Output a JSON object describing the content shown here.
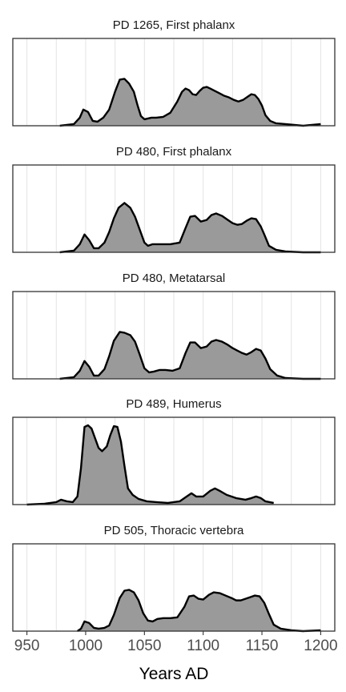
{
  "chart_data": {
    "type": "area",
    "x_ticks": [
      950,
      1000,
      1050,
      1100,
      1150,
      1200
    ],
    "xlabel": "Years AD",
    "xlim": [
      938,
      1212
    ],
    "colors": {
      "fill": "#9a9a9a",
      "line": "#000000",
      "grid": "#e3e3e3",
      "frame": "#333333"
    },
    "grid": true,
    "panels": [
      {
        "title": "PD 1265, First phalanx",
        "x": [
          978,
          990,
          995,
          998,
          1002,
          1006,
          1010,
          1015,
          1020,
          1025,
          1029,
          1033,
          1037,
          1041,
          1044,
          1047,
          1050,
          1053,
          1056,
          1060,
          1066,
          1072,
          1078,
          1082,
          1085,
          1088,
          1091,
          1094,
          1097,
          1100,
          1103,
          1106,
          1110,
          1114,
          1118,
          1122,
          1126,
          1130,
          1134,
          1138,
          1141,
          1144,
          1147,
          1150,
          1153,
          1157,
          1162,
          1170,
          1185,
          1200
        ],
        "y": [
          0.0,
          0.02,
          0.1,
          0.2,
          0.17,
          0.06,
          0.05,
          0.1,
          0.2,
          0.42,
          0.57,
          0.58,
          0.52,
          0.42,
          0.26,
          0.12,
          0.08,
          0.09,
          0.1,
          0.1,
          0.11,
          0.16,
          0.3,
          0.42,
          0.46,
          0.44,
          0.39,
          0.38,
          0.43,
          0.47,
          0.48,
          0.46,
          0.43,
          0.4,
          0.37,
          0.35,
          0.32,
          0.3,
          0.32,
          0.36,
          0.39,
          0.38,
          0.33,
          0.25,
          0.13,
          0.06,
          0.03,
          0.02,
          0.0,
          0.02
        ]
      },
      {
        "title": "PD 480, First phalanx",
        "x": [
          978,
          990,
          995,
          999,
          1003,
          1007,
          1011,
          1016,
          1020,
          1024,
          1028,
          1033,
          1038,
          1042,
          1046,
          1050,
          1053,
          1057,
          1062,
          1072,
          1080,
          1085,
          1089,
          1093,
          1098,
          1103,
          1107,
          1111,
          1116,
          1121,
          1125,
          1129,
          1133,
          1137,
          1141,
          1145,
          1149,
          1152,
          1156,
          1162,
          1170,
          1185,
          1200
        ],
        "y": [
          0.0,
          0.02,
          0.1,
          0.22,
          0.15,
          0.05,
          0.05,
          0.12,
          0.25,
          0.42,
          0.55,
          0.61,
          0.55,
          0.44,
          0.28,
          0.12,
          0.08,
          0.1,
          0.1,
          0.1,
          0.12,
          0.3,
          0.44,
          0.45,
          0.38,
          0.4,
          0.46,
          0.48,
          0.45,
          0.4,
          0.36,
          0.34,
          0.35,
          0.39,
          0.42,
          0.41,
          0.32,
          0.22,
          0.08,
          0.03,
          0.01,
          0.0,
          0.0
        ]
      },
      {
        "title": "PD 480, Metatarsal",
        "x": [
          978,
          990,
          995,
          999,
          1003,
          1007,
          1011,
          1016,
          1020,
          1024,
          1029,
          1033,
          1038,
          1042,
          1046,
          1050,
          1054,
          1058,
          1063,
          1068,
          1074,
          1080,
          1085,
          1089,
          1093,
          1098,
          1103,
          1107,
          1111,
          1116,
          1121,
          1125,
          1129,
          1133,
          1137,
          1141,
          1145,
          1149,
          1153,
          1157,
          1163,
          1170,
          1185,
          1200
        ],
        "y": [
          0.0,
          0.02,
          0.1,
          0.22,
          0.15,
          0.04,
          0.04,
          0.12,
          0.28,
          0.47,
          0.58,
          0.57,
          0.54,
          0.46,
          0.3,
          0.13,
          0.08,
          0.09,
          0.11,
          0.11,
          0.1,
          0.13,
          0.32,
          0.45,
          0.45,
          0.38,
          0.4,
          0.46,
          0.48,
          0.46,
          0.42,
          0.38,
          0.35,
          0.32,
          0.3,
          0.33,
          0.37,
          0.35,
          0.25,
          0.12,
          0.04,
          0.01,
          0.0,
          0.0
        ]
      },
      {
        "title": "PD 489, Humerus",
        "x": [
          950,
          965,
          975,
          979,
          984,
          989,
          993,
          996,
          999,
          1002,
          1005,
          1008,
          1011,
          1014,
          1018,
          1021,
          1024,
          1027,
          1030,
          1033,
          1036,
          1040,
          1045,
          1052,
          1060,
          1070,
          1080,
          1086,
          1090,
          1094,
          1100,
          1106,
          1110,
          1114,
          1120,
          1128,
          1136,
          1141,
          1145,
          1149,
          1153,
          1160
        ],
        "y": [
          0.0,
          0.01,
          0.03,
          0.06,
          0.04,
          0.03,
          0.1,
          0.45,
          0.96,
          0.98,
          0.94,
          0.82,
          0.7,
          0.66,
          0.72,
          0.86,
          0.97,
          0.96,
          0.78,
          0.48,
          0.2,
          0.12,
          0.07,
          0.04,
          0.03,
          0.02,
          0.04,
          0.1,
          0.14,
          0.1,
          0.1,
          0.17,
          0.2,
          0.17,
          0.12,
          0.08,
          0.06,
          0.08,
          0.1,
          0.08,
          0.04,
          0.02
        ]
      },
      {
        "title": "PD 505, Thoracic vertebra",
        "x": [
          993,
          996,
          999,
          1003,
          1007,
          1011,
          1016,
          1020,
          1024,
          1029,
          1033,
          1037,
          1041,
          1045,
          1049,
          1053,
          1057,
          1061,
          1066,
          1072,
          1078,
          1084,
          1088,
          1092,
          1096,
          1100,
          1105,
          1109,
          1114,
          1119,
          1124,
          1128,
          1132,
          1136,
          1140,
          1144,
          1148,
          1152,
          1156,
          1160,
          1166,
          1175,
          1185,
          1200
        ],
        "y": [
          0.0,
          0.03,
          0.12,
          0.1,
          0.04,
          0.03,
          0.04,
          0.07,
          0.2,
          0.41,
          0.5,
          0.51,
          0.48,
          0.38,
          0.22,
          0.13,
          0.12,
          0.15,
          0.16,
          0.16,
          0.17,
          0.3,
          0.43,
          0.44,
          0.4,
          0.39,
          0.45,
          0.48,
          0.47,
          0.44,
          0.41,
          0.38,
          0.38,
          0.4,
          0.42,
          0.44,
          0.43,
          0.35,
          0.21,
          0.08,
          0.03,
          0.01,
          0.0,
          0.01
        ]
      }
    ]
  }
}
